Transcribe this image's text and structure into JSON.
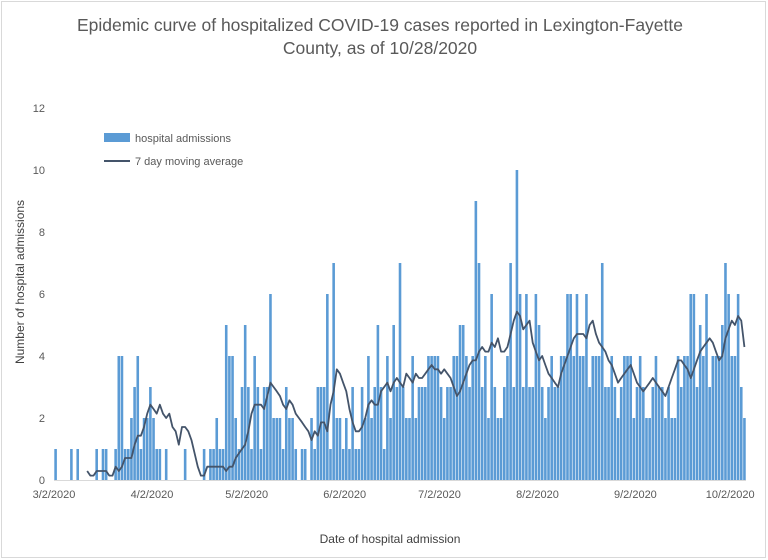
{
  "chart_data": {
    "type": "bar",
    "title_lines": [
      "Epidemic curve of hospitalized COVID-19 cases reported in Lexington-Fayette",
      "County, as of 10/28/2020"
    ],
    "xlabel": "Date of hospital admission",
    "ylabel": "Number of hospital admissions",
    "ylim": [
      0,
      12
    ],
    "yticks": [
      0,
      2,
      4,
      6,
      8,
      10,
      12
    ],
    "grid": false,
    "legend_position": "top-left",
    "x_start": "3/2/2020",
    "x_end": "10/28/2020",
    "x_tick_labels": [
      "3/2/2020",
      "4/2/2020",
      "5/2/2020",
      "6/2/2020",
      "7/2/2020",
      "8/2/2020",
      "9/2/2020",
      "10/2/2020"
    ],
    "series": [
      {
        "name": "hospital admissions",
        "kind": "bar",
        "color": "#5b9bd5",
        "values": [
          1,
          0,
          0,
          0,
          0,
          1,
          0,
          1,
          0,
          0,
          0,
          0,
          0,
          1,
          0,
          1,
          1,
          0,
          0,
          1,
          4,
          4,
          1,
          1,
          2,
          3,
          4,
          1,
          2,
          2,
          3,
          2,
          1,
          1,
          0,
          1,
          0,
          0,
          0,
          0,
          0,
          1,
          0,
          0,
          0,
          0,
          0,
          1,
          0,
          1,
          1,
          2,
          1,
          1,
          5,
          4,
          4,
          2,
          1,
          3,
          5,
          3,
          1,
          4,
          3,
          1,
          3,
          3,
          6,
          2,
          2,
          2,
          1,
          3,
          2,
          2,
          1,
          0,
          1,
          1,
          0,
          2,
          1,
          3,
          3,
          3,
          6,
          1,
          7,
          2,
          2,
          1,
          2,
          1,
          3,
          1,
          1,
          3,
          2,
          4,
          2,
          3,
          5,
          3,
          1,
          4,
          2,
          5,
          3,
          7,
          3,
          2,
          2,
          4,
          2,
          3,
          3,
          3,
          4,
          4,
          4,
          4,
          3,
          2,
          3,
          3,
          4,
          4,
          5,
          5,
          4,
          3,
          4,
          9,
          7,
          3,
          4,
          2,
          6,
          3,
          2,
          2,
          3,
          4,
          7,
          3,
          10,
          6,
          3,
          6,
          3,
          3,
          6,
          5,
          3,
          2,
          3,
          4,
          3,
          3,
          4,
          4,
          6,
          6,
          4,
          6,
          4,
          4,
          6,
          3,
          4,
          4,
          4,
          7,
          3,
          3,
          4,
          3,
          2,
          3,
          4,
          4,
          4,
          2,
          3,
          4,
          3,
          2,
          2,
          3,
          4,
          3,
          3,
          2,
          3,
          2,
          2,
          4,
          3,
          4,
          4,
          6,
          6,
          3,
          5,
          4,
          6,
          3,
          4,
          4,
          4,
          5,
          7,
          6,
          4,
          4,
          6,
          3,
          2
        ]
      },
      {
        "name": "7 day moving average",
        "kind": "line",
        "color": "#44546a",
        "values": [
          0.29,
          0.14,
          0.14,
          0.29,
          0.29,
          0.29,
          0.29,
          0.14,
          0.14,
          0.43,
          0.29,
          0.43,
          0.71,
          0.71,
          0.71,
          1.14,
          1.43,
          1.43,
          1.71,
          2.14,
          2.43,
          2.29,
          2.14,
          2.43,
          2.14,
          2.0,
          2.14,
          1.71,
          1.57,
          1.14,
          1.71,
          1.71,
          1.57,
          1.29,
          0.86,
          0.43,
          0.14,
          0.14,
          0.43,
          0.43,
          0.43,
          0.43,
          0.43,
          0.43,
          0.29,
          0.43,
          0.43,
          0.71,
          0.86,
          1.0,
          1.14,
          1.57,
          2.14,
          2.43,
          2.43,
          2.43,
          2.29,
          2.71,
          3.14,
          3.0,
          2.86,
          2.71,
          2.43,
          2.29,
          2.57,
          2.43,
          2.14,
          2.0,
          1.86,
          1.71,
          1.57,
          1.29,
          1.57,
          1.43,
          1.86,
          1.86,
          1.57,
          2.43,
          2.86,
          3.57,
          3.43,
          3.14,
          2.86,
          2.29,
          1.86,
          1.57,
          1.57,
          1.71,
          2.0,
          2.43,
          2.57,
          2.43,
          2.43,
          2.86,
          3.0,
          3.14,
          2.86,
          3.14,
          3.29,
          3.14,
          3.0,
          3.43,
          3.29,
          3.14,
          3.43,
          3.29,
          3.29,
          3.43,
          3.57,
          3.71,
          3.57,
          3.57,
          3.43,
          3.57,
          3.43,
          3.29,
          3.0,
          2.71,
          2.86,
          3.14,
          3.43,
          3.71,
          3.86,
          3.86,
          4.14,
          4.29,
          4.14,
          4.14,
          4.43,
          4.29,
          4.57,
          4.14,
          4.14,
          4.29,
          4.71,
          5.14,
          5.43,
          5.29,
          4.86,
          5.0,
          5.14,
          4.43,
          4.14,
          3.86,
          4.0,
          3.71,
          3.43,
          3.29,
          3.14,
          3.0,
          3.43,
          3.71,
          4.0,
          4.29,
          4.57,
          4.71,
          4.71,
          4.71,
          4.57,
          5.0,
          5.14,
          4.71,
          4.43,
          4.29,
          4.14,
          3.86,
          3.71,
          3.43,
          3.14,
          3.29,
          3.43,
          3.57,
          3.71,
          3.43,
          3.14,
          3.0,
          2.86,
          3.0,
          3.14,
          3.29,
          3.14,
          3.0,
          2.86,
          2.71,
          3.0,
          3.29,
          3.57,
          3.86,
          3.86,
          3.71,
          3.57,
          3.29,
          3.57,
          3.86,
          4.14,
          4.29,
          4.43,
          4.57,
          4.43,
          4.14,
          3.86,
          4.0,
          4.57,
          4.86,
          5.14,
          5.0,
          5.29,
          5.14,
          4.29
        ]
      }
    ]
  }
}
